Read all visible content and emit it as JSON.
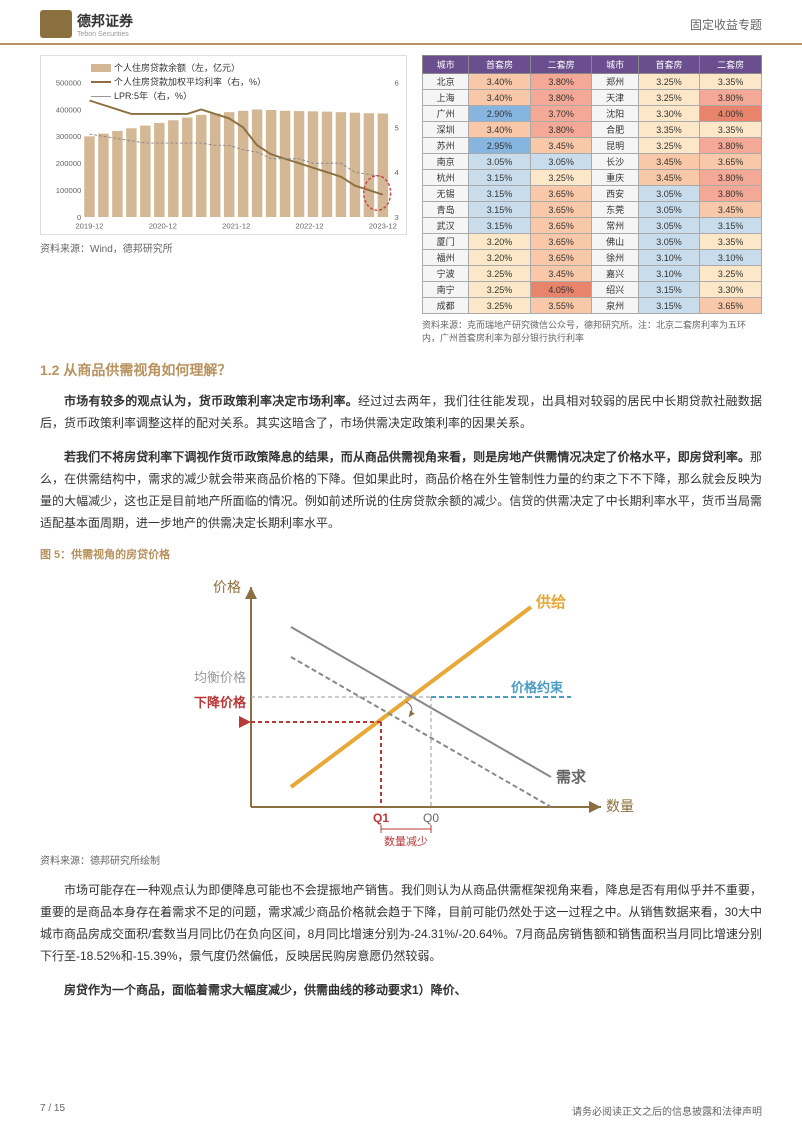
{
  "header": {
    "company": "德邦证券",
    "company_en": "Tebon Securities",
    "topic": "固定收益专题"
  },
  "chart": {
    "legend1": "个人住房贷款余额（左，亿元）",
    "legend2": "个人住房贷款加权平均利率（右，%）",
    "legend3": "LPR:5年（右，%）",
    "xlabels": [
      "2019-12",
      "2020-12",
      "2021-12",
      "2022-12",
      "2023-12"
    ],
    "yleft_max": 500000,
    "yleft_ticks": [
      0,
      100000,
      200000,
      300000,
      400000,
      500000
    ],
    "yright_ticks": [
      3,
      4,
      5,
      6
    ],
    "bars": [
      300000,
      310000,
      320000,
      330000,
      340000,
      350000,
      360000,
      370000,
      380000,
      385000,
      390000,
      395000,
      400000,
      398000,
      395000,
      394000,
      393000,
      392000,
      390000,
      388000,
      386000,
      385000
    ],
    "line1": [
      5.6,
      5.5,
      5.4,
      5.3,
      5.3,
      5.3,
      5.3,
      5.3,
      5.4,
      5.3,
      5.2,
      5.0,
      4.6,
      4.4,
      4.3,
      4.2,
      4.1,
      4.0,
      3.9,
      3.7,
      3.6,
      3.5
    ],
    "line2": [
      4.85,
      4.8,
      4.75,
      4.7,
      4.65,
      4.65,
      4.65,
      4.65,
      4.65,
      4.6,
      4.6,
      4.5,
      4.45,
      4.3,
      4.3,
      4.3,
      4.2,
      4.2,
      4.2,
      4.0,
      3.95,
      3.9
    ],
    "bar_color": "#d4b896",
    "line1_color": "#8b6f3e",
    "line2_color": "#888888",
    "source": "资料来源：Wind，德邦研究所"
  },
  "table": {
    "headers": [
      "城市",
      "首套房",
      "二套房",
      "城市",
      "首套房",
      "二套房"
    ],
    "rows": [
      [
        "北京",
        "3.40%",
        "3.80%",
        "郑州",
        "3.25%",
        "3.35%"
      ],
      [
        "上海",
        "3.40%",
        "3.80%",
        "天津",
        "3.25%",
        "3.80%"
      ],
      [
        "广州",
        "2.90%",
        "3.70%",
        "沈阳",
        "3.30%",
        "4.00%"
      ],
      [
        "深圳",
        "3.40%",
        "3.80%",
        "合肥",
        "3.35%",
        "3.35%"
      ],
      [
        "苏州",
        "2.95%",
        "3.45%",
        "昆明",
        "3.25%",
        "3.80%"
      ],
      [
        "南京",
        "3.05%",
        "3.05%",
        "长沙",
        "3.45%",
        "3.65%"
      ],
      [
        "杭州",
        "3.15%",
        "3.25%",
        "重庆",
        "3.45%",
        "3.80%"
      ],
      [
        "无锡",
        "3.15%",
        "3.65%",
        "西安",
        "3.05%",
        "3.80%"
      ],
      [
        "青岛",
        "3.15%",
        "3.65%",
        "东莞",
        "3.05%",
        "3.45%"
      ],
      [
        "武汉",
        "3.15%",
        "3.65%",
        "常州",
        "3.05%",
        "3.15%"
      ],
      [
        "厦门",
        "3.20%",
        "3.65%",
        "佛山",
        "3.05%",
        "3.35%"
      ],
      [
        "福州",
        "3.20%",
        "3.65%",
        "徐州",
        "3.10%",
        "3.10%"
      ],
      [
        "宁波",
        "3.25%",
        "3.45%",
        "嘉兴",
        "3.10%",
        "3.25%"
      ],
      [
        "南宁",
        "3.25%",
        "4.05%",
        "绍兴",
        "3.15%",
        "3.30%"
      ],
      [
        "成都",
        "3.25%",
        "3.55%",
        "泉州",
        "3.15%",
        "3.65%"
      ]
    ],
    "cell_colors": {
      "low": "#86b5e0",
      "mid": "#fce8c8",
      "high": "#f4a896",
      "higher": "#e8846b"
    },
    "source": "资料来源：克而瑞地产研究微信公众号，德邦研究所。注：北京二套房利率为五环内，广州首套房利率为部分银行执行利率"
  },
  "section": {
    "title": "1.2 从商品供需视角如何理解？",
    "p1a": "市场有较多的观点认为，货币政策利率决定市场利率。",
    "p1b": "经过过去两年，我们往往能发现，出具相对较弱的居民中长期贷款社融数据后，货币政策利率调整这样的配对关系。其实这暗含了，市场供需决定政策利率的因果关系。",
    "p2a": "若我们不将房贷利率下调视作货币政策降息的结果，而从商品供需视角来看，则是房地产供需情况决定了价格水平，即房贷利率。",
    "p2b": "那么，在供需结构中，需求的减少就会带来商品价格的下降。但如果此时，商品价格在外生管制性力量的约束之下不下降，那么就会反映为量的大幅减少，这也正是目前地产所面临的情况。例如前述所说的住房贷款余额的减少。信贷的供需决定了中长期利率水平，货币当局需适配基本面周期，进一步地产的供需决定长期利率水平。"
  },
  "figure5": {
    "title": "图 5：供需视角的房贷价格",
    "y_label": "价格",
    "x_label": "数量",
    "supply_label": "供给",
    "demand_label": "需求",
    "eq_price": "均衡价格",
    "down_price": "下降价格",
    "constraint": "价格约束",
    "q0": "Q0",
    "q1": "Q1",
    "qty_dec": "数量减少",
    "supply_color": "#e8a838",
    "demand_color": "#888888",
    "constraint_color": "#4a9bc4",
    "down_color": "#b83838",
    "axis_color": "#8b6f3e",
    "source": "资料来源：德邦研究所绘制"
  },
  "para3": "市场可能存在一种观点认为即便降息可能也不会提振地产销售。我们则认为从商品供需框架视角来看，降息是否有用似乎并不重要，重要的是商品本身存在着需求不足的问题，需求减少商品价格就会趋于下降，目前可能仍然处于这一过程之中。",
  "para3b": "从销售数据来看，30大中城市商品房成交面积/套数当月同比仍在负向区间，8月同比增速分别为-24.31%/-20.64%。7月商品房销售额和销售面积当月同比增速分别下行至-18.52%和-15.39%，景气度仍然偏低，反映居民购房意愿仍然较弱。",
  "para4": "房贷作为一个商品，面临着需求大幅度减少，供需曲线的移动要求1）降价、",
  "footer": {
    "page": "7 / 15",
    "disclaimer": "请务必阅读正文之后的信息披露和法律声明"
  }
}
